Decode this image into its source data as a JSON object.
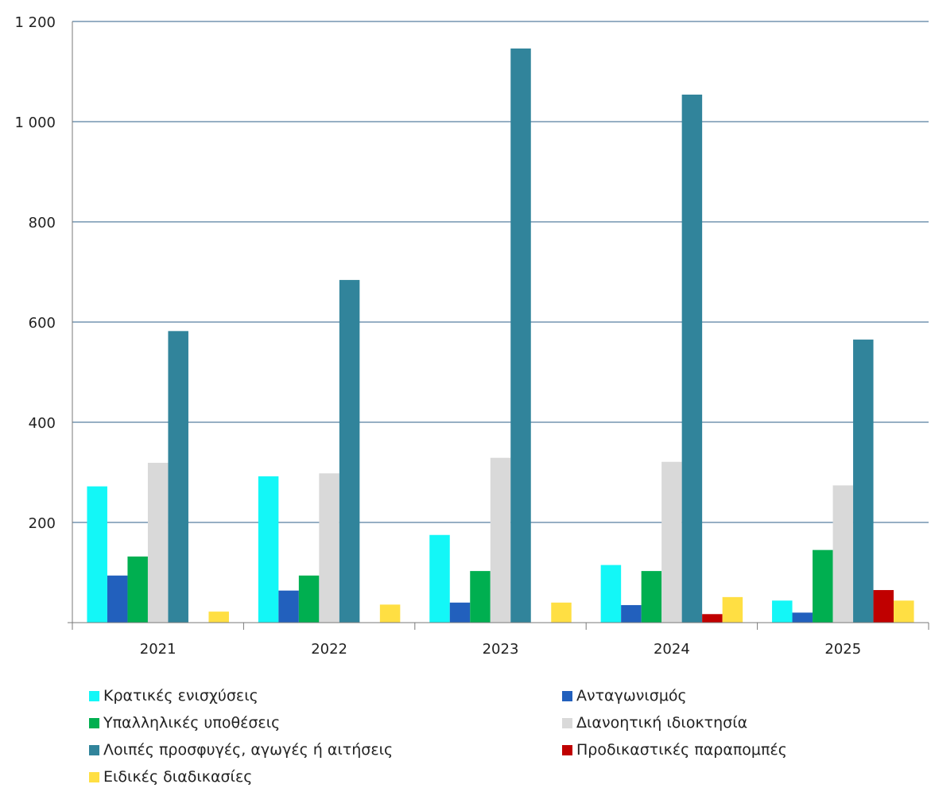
{
  "chart_data": {
    "type": "bar",
    "categories": [
      "2021",
      "2022",
      "2023",
      "2024",
      "2025"
    ],
    "ylim": [
      0,
      1200
    ],
    "yticks": [
      0,
      200,
      400,
      600,
      800,
      1000,
      1200
    ],
    "ytick_labels": [
      "",
      "200",
      "400",
      "600",
      "800",
      "1 000",
      "1 200"
    ],
    "grid": true,
    "legend_position": "bottom",
    "series": [
      {
        "name": "Κρατικές ενισχύσεις",
        "color": "#13F7F7",
        "values": [
          272,
          292,
          175,
          115,
          44
        ]
      },
      {
        "name": "Ανταγωνισμός",
        "color": "#2260BD",
        "values": [
          94,
          64,
          40,
          35,
          20
        ]
      },
      {
        "name": "Υπαλληλικές υποθέσεις",
        "color": "#00AF50",
        "values": [
          132,
          94,
          103,
          103,
          145
        ]
      },
      {
        "name": "Διανοητική ιδιοκτησία",
        "color": "#D9D9D9",
        "values": [
          319,
          298,
          329,
          321,
          274
        ]
      },
      {
        "name": "Λοιπές προσφυγές, αγωγές ή αιτήσεις",
        "color": "#31849B",
        "values": [
          582,
          684,
          1146,
          1054,
          565
        ]
      },
      {
        "name": "Προδικαστικές παραπομπές",
        "color": "#C00000",
        "values": [
          0,
          0,
          0,
          17,
          65
        ]
      },
      {
        "name": "Ειδικές διαδικασίες",
        "color": "#FFDF43",
        "values": [
          22,
          36,
          40,
          51,
          44
        ]
      }
    ]
  }
}
